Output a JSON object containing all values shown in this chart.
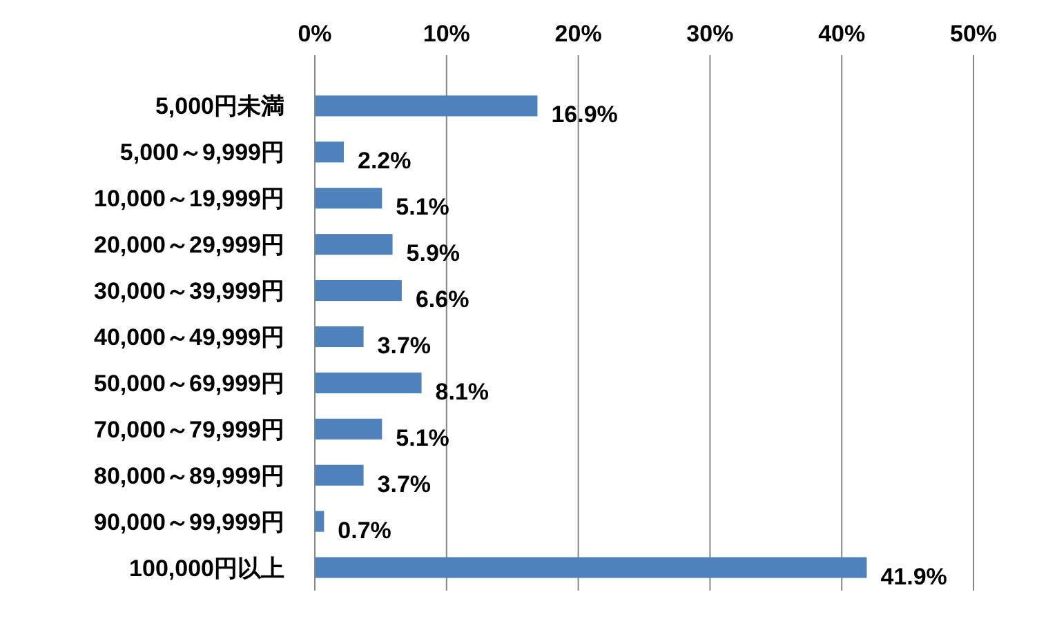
{
  "chart_data": {
    "type": "bar",
    "orientation": "horizontal",
    "categories": [
      "5,000円未満",
      "5,000～9,999円",
      "10,000～19,999円",
      "20,000～29,999円",
      "30,000～39,999円",
      "40,000～49,999円",
      "50,000～69,999円",
      "70,000～79,999円",
      "80,000～89,999円",
      "90,000～99,999円",
      "100,000円以上"
    ],
    "values": [
      16.9,
      2.2,
      5.1,
      5.9,
      6.6,
      3.7,
      8.1,
      5.1,
      3.7,
      0.7,
      41.9
    ],
    "value_labels": [
      "16.9%",
      "2.2%",
      "5.1%",
      "5.9%",
      "6.6%",
      "3.7%",
      "8.1%",
      "5.1%",
      "3.7%",
      "0.7%",
      "41.9%"
    ],
    "color": "#4f81bd",
    "xlim": [
      0,
      50
    ],
    "xticks": [
      {
        "value": 0,
        "label": "0%"
      },
      {
        "value": 10,
        "label": "10%"
      },
      {
        "value": 20,
        "label": "20%"
      },
      {
        "value": 30,
        "label": "30%"
      },
      {
        "value": 40,
        "label": "40%"
      },
      {
        "value": 50,
        "label": "50%"
      }
    ],
    "grid": "x"
  }
}
